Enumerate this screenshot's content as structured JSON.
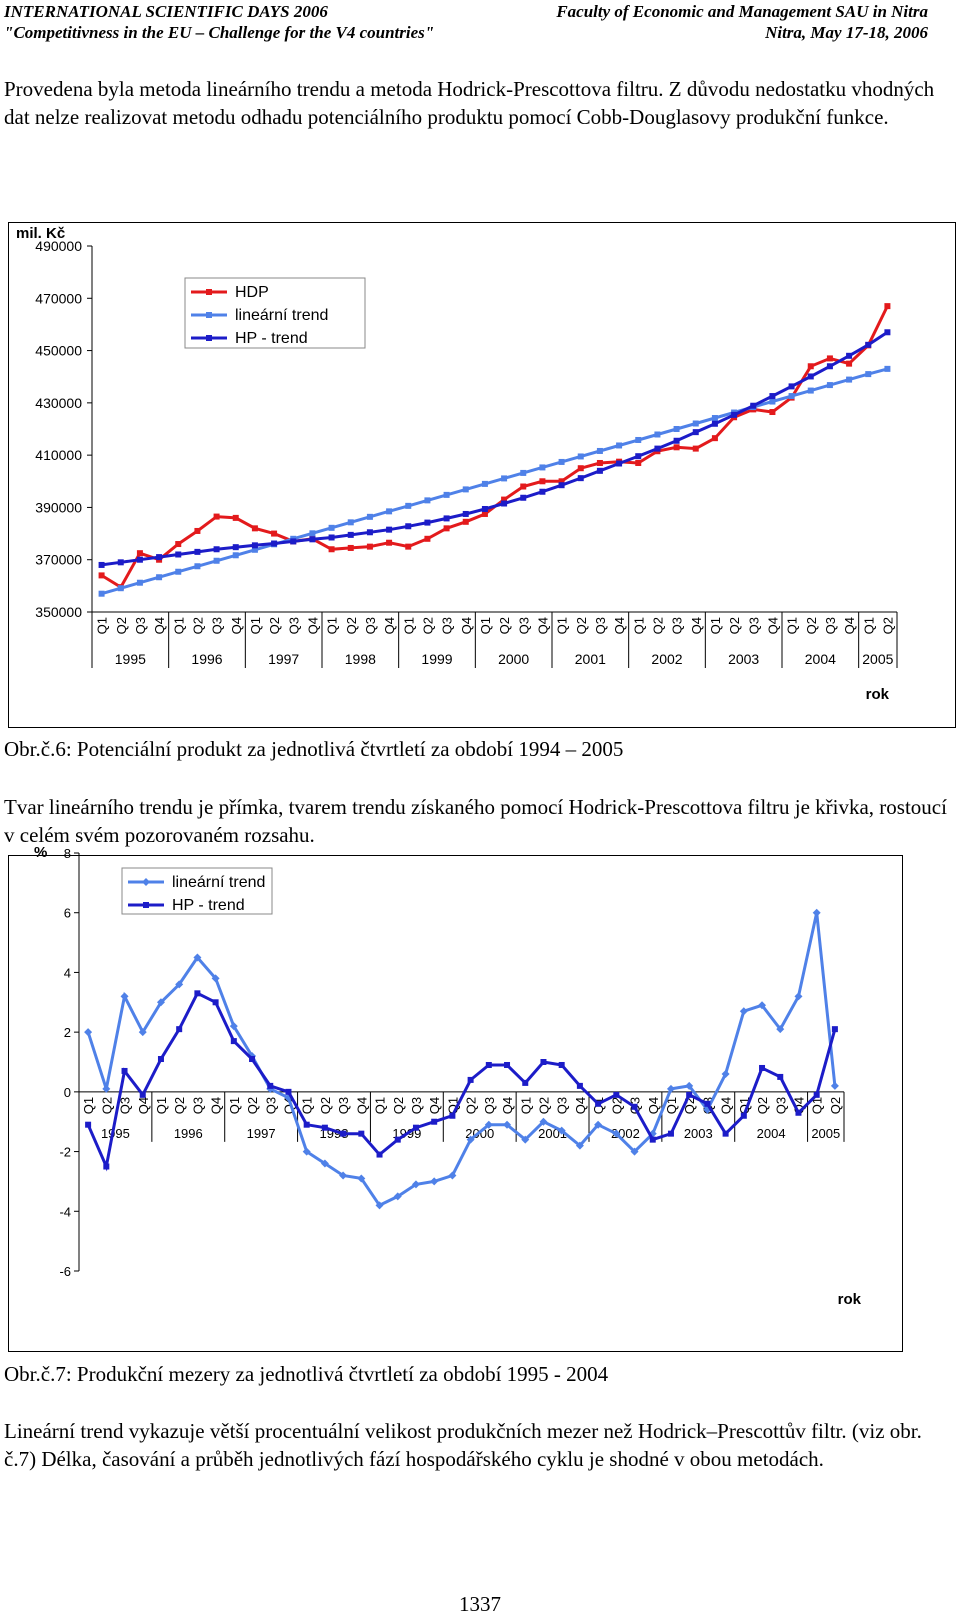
{
  "header": {
    "left1": "INTERNATIONAL SCIENTIFIC DAYS 2006",
    "left2": "\"Competitivness in the EU – Challenge for the V4 countries\"",
    "right1": "Faculty of Economic and Management SAU in Nitra",
    "right2": "Nitra, May 17-18, 2006"
  },
  "paragraphs": {
    "p1": "Provedena byla metoda lineárního trendu a metoda Hodrick-Prescottova filtru. Z důvodu nedostatku vhodných dat nelze realizovat metodu odhadu potenciálního produktu pomocí Cobb-Douglasovy produkční funkce.",
    "p2": "Tvar lineárního trendu je přímka, tvarem trendu získaného pomocí Hodrick-Prescottova filtru je křivka, rostoucí v celém svém pozorovaném rozsahu.",
    "p3": "Lineární trend vykazuje větší procentuální velikost produkčních mezer než Hodrick–Prescottův filtr. (viz obr. č.7) Délka, časování a průběh jednotlivých fází hospodářského cyklu je shodné v obou metodách."
  },
  "captions": {
    "fig6": "Obr.č.6: Potenciální produkt za jednotlivá čtvrtletí za období 1994 – 2005",
    "fig7": "Obr.č.7: Produkční mezery za jednotlivá čtvrtletí za období 1995 - 2004"
  },
  "page_number": "1337",
  "colors": {
    "hdp": "#e31a1c",
    "linear": "#4f81e8",
    "hp": "#1c1cc8"
  },
  "chart_data": [
    {
      "type": "line",
      "unit_label": "mil. Kč",
      "xlabel": "rok",
      "ylim": [
        350000,
        490000
      ],
      "yticks": [
        "490000",
        "470000",
        "450000",
        "430000",
        "410000",
        "390000",
        "370000",
        "350000"
      ],
      "quarter_labels": [
        "Q1",
        "Q2",
        "Q3",
        "Q4",
        "Q1",
        "Q2",
        "Q3",
        "Q4",
        "Q1",
        "Q2",
        "Q3",
        "Q4",
        "Q1",
        "Q2",
        "Q3",
        "Q4",
        "Q1",
        "Q2",
        "Q3",
        "Q4",
        "Q1",
        "Q2",
        "Q3",
        "Q4",
        "Q1",
        "Q2",
        "Q3",
        "Q4",
        "Q1",
        "Q2",
        "Q3",
        "Q4",
        "Q1",
        "Q2",
        "Q3",
        "Q4",
        "Q1",
        "Q2",
        "Q3",
        "Q4",
        "Q1",
        "Q2"
      ],
      "years": [
        "1995",
        "1996",
        "1997",
        "1998",
        "1999",
        "2000",
        "2001",
        "2002",
        "2003",
        "2004",
        "2005"
      ],
      "legend": [
        "HDP",
        "lineární trend",
        "HP - trend"
      ],
      "series": [
        {
          "name": "HDP",
          "values": [
            364000,
            359500,
            372500,
            370000,
            376000,
            381000,
            386500,
            386000,
            382000,
            380000,
            377000,
            378000,
            374000,
            374500,
            375000,
            376500,
            375000,
            378000,
            382000,
            384500,
            387500,
            393000,
            398000,
            400000,
            400000,
            405000,
            407000,
            407500,
            407000,
            411500,
            413000,
            412500,
            416500,
            424500,
            427500,
            426500,
            432000,
            444000,
            447000,
            445000,
            452000,
            467000
          ]
        },
        {
          "name": "lineární trend",
          "values": [
            357000,
            359100,
            361200,
            363300,
            365400,
            367500,
            369600,
            371700,
            373800,
            375900,
            378000,
            380100,
            382200,
            384300,
            386400,
            388500,
            390600,
            392700,
            394800,
            396900,
            399000,
            401100,
            403200,
            405300,
            407400,
            409500,
            411600,
            413700,
            415800,
            417900,
            420000,
            422100,
            424200,
            426300,
            428400,
            430500,
            432600,
            434700,
            436800,
            438900,
            441000,
            443000
          ]
        },
        {
          "name": "HP - trend",
          "values": [
            368000,
            369000,
            370000,
            371000,
            372000,
            373000,
            374000,
            374800,
            375500,
            376200,
            377000,
            377800,
            378500,
            379500,
            380500,
            381500,
            382800,
            384200,
            385800,
            387500,
            389400,
            391500,
            393700,
            396000,
            398500,
            401200,
            404000,
            406800,
            409600,
            412500,
            415500,
            418800,
            422000,
            425400,
            428900,
            432600,
            436300,
            440100,
            444000,
            448000,
            452200,
            457000
          ]
        }
      ]
    },
    {
      "type": "line",
      "unit_label": "%",
      "xlabel": "rok",
      "ylim": [
        -6,
        8
      ],
      "yticks": [
        "8",
        "6",
        "4",
        "2",
        "0",
        "-2",
        "-4",
        "-6"
      ],
      "quarter_labels": [
        "Q1",
        "Q2",
        "Q3",
        "Q4",
        "Q1",
        "Q2",
        "Q3",
        "Q4",
        "Q1",
        "Q2",
        "Q3",
        "Q4",
        "Q1",
        "Q2",
        "Q3",
        "Q4",
        "Q1",
        "Q2",
        "Q3",
        "Q4",
        "Q1",
        "Q2",
        "Q3",
        "Q4",
        "Q1",
        "Q2",
        "Q3",
        "Q4",
        "Q1",
        "Q2",
        "Q3",
        "Q4",
        "Q1",
        "Q2",
        "Q3",
        "Q4",
        "Q1",
        "Q2",
        "Q3",
        "Q4",
        "Q1",
        "Q2"
      ],
      "years": [
        "1995",
        "1996",
        "1997",
        "1998",
        "1999",
        "2000",
        "2001",
        "2002",
        "2003",
        "2004",
        "2005"
      ],
      "legend": [
        "lineární trend",
        "HP - trend"
      ],
      "series": [
        {
          "name": "lineární trend",
          "values": [
            2.0,
            0.1,
            3.2,
            2.0,
            3.0,
            3.6,
            4.5,
            3.8,
            2.2,
            1.2,
            0.1,
            -0.2,
            -2.0,
            -2.4,
            -2.8,
            -2.9,
            -3.8,
            -3.5,
            -3.1,
            -3.0,
            -2.8,
            -1.6,
            -1.1,
            -1.1,
            -1.6,
            -1.0,
            -1.3,
            -1.8,
            -1.1,
            -1.4,
            -2.0,
            -1.4,
            0.1,
            0.2,
            -0.6,
            0.6,
            2.7,
            2.9,
            2.1,
            3.2,
            6.0,
            0.2
          ]
        },
        {
          "name": "HP - trend",
          "values": [
            -1.1,
            -2.5,
            0.7,
            -0.1,
            1.1,
            2.1,
            3.3,
            3.0,
            1.7,
            1.1,
            0.2,
            0.0,
            -1.1,
            -1.2,
            -1.4,
            -1.4,
            -2.1,
            -1.6,
            -1.2,
            -1.0,
            -0.8,
            0.4,
            0.9,
            0.9,
            0.3,
            1.0,
            0.9,
            0.2,
            -0.4,
            -0.1,
            -0.5,
            -1.6,
            -1.4,
            -0.1,
            -0.4,
            -1.4,
            -0.8,
            0.8,
            0.5,
            -0.7,
            -0.1,
            2.1
          ]
        }
      ]
    }
  ]
}
